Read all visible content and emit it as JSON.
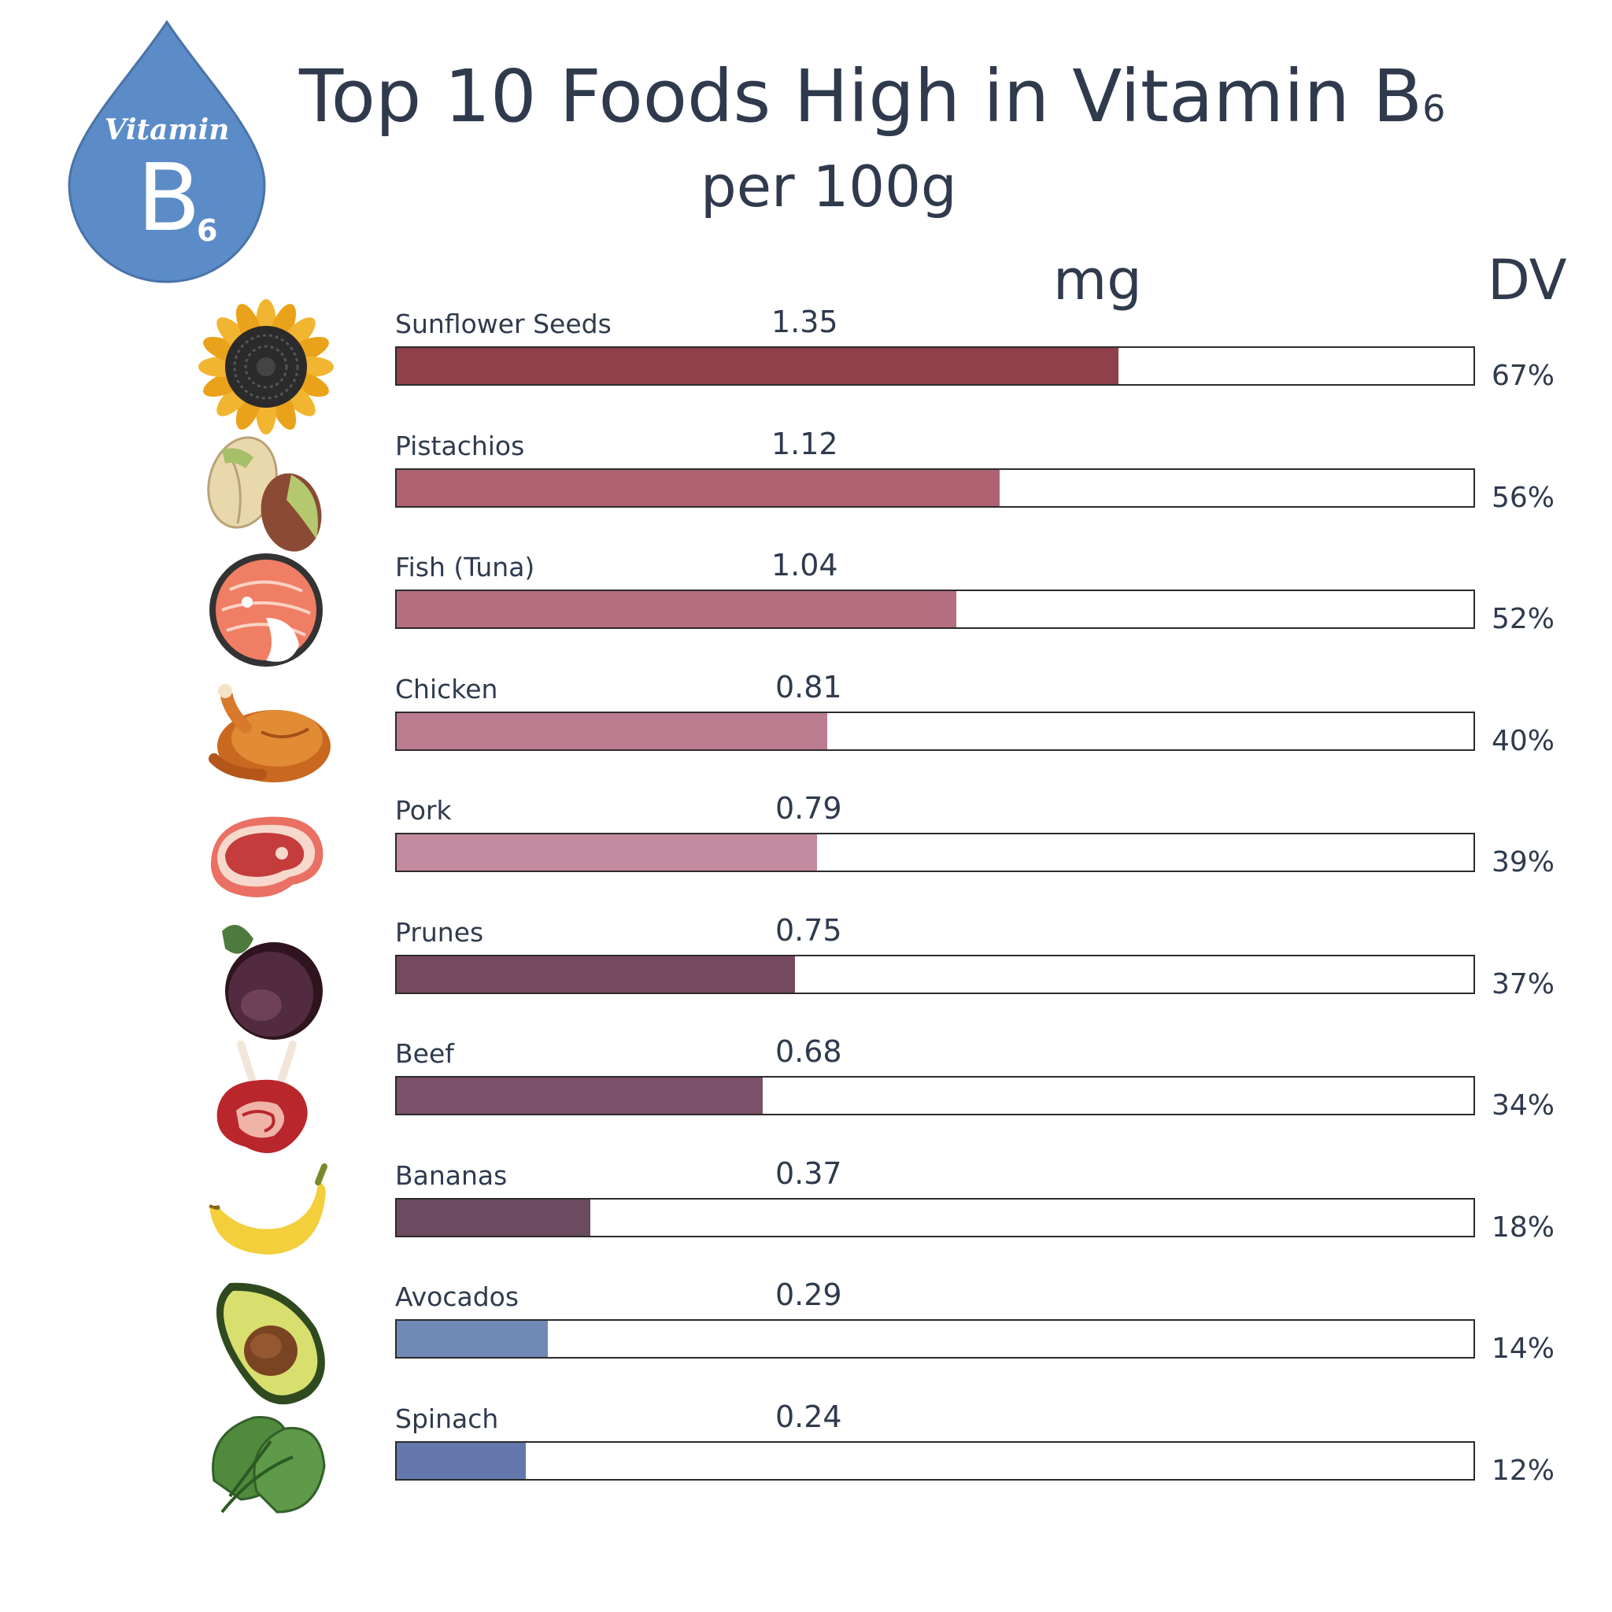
{
  "badge": {
    "word": "Vitamin",
    "letter": "B",
    "subscript": "6",
    "color": "#5b8cc7"
  },
  "title": {
    "main": "Top 10 Foods High in Vitamin B",
    "sub": "6"
  },
  "subtitle": "per 100g",
  "units": {
    "mg": "mg",
    "dv": "DV"
  },
  "chart_data": {
    "type": "bar",
    "orientation": "horizontal",
    "title": "Top 10 Foods High in Vitamin B6 per 100g",
    "categories": [
      "Sunflower Seeds",
      "Pistachios",
      "Fish (Tuna)",
      "Chicken",
      "Pork",
      "Prunes",
      "Beef",
      "Bananas",
      "Avocados",
      "Spinach"
    ],
    "value_labels": [
      "1.35",
      "1.12",
      "1.04",
      "0.81",
      "0.79",
      "0.75",
      "0.68",
      "0.37",
      "0.29",
      "0.24"
    ],
    "series": [
      {
        "name": "mg",
        "values": [
          1.35,
          1.12,
          1.04,
          0.81,
          0.79,
          0.75,
          0.68,
          0.37,
          0.29,
          0.24
        ]
      },
      {
        "name": "DV",
        "values": [
          67,
          56,
          52,
          40,
          39,
          37,
          34,
          18,
          14,
          12
        ]
      }
    ],
    "dv_labels": [
      "67%",
      "56%",
      "52%",
      "40%",
      "39%",
      "37%",
      "34%",
      "18%",
      "14%",
      "12%"
    ],
    "bar_scale_max_percent": 100,
    "colors": [
      "#8f4049",
      "#ae6171",
      "#b56e80",
      "#bb7c8f",
      "#c38aa0",
      "#754a5e",
      "#7a5168",
      "#6c4a60",
      "#7189b6",
      "#6478ad"
    ],
    "icons": [
      "sunflower-icon",
      "pistachio-icon",
      "tuna-steak-icon",
      "roast-chicken-icon",
      "pork-steak-icon",
      "prune-icon",
      "beef-ribs-icon",
      "banana-icon",
      "avocado-icon",
      "spinach-icon"
    ]
  }
}
